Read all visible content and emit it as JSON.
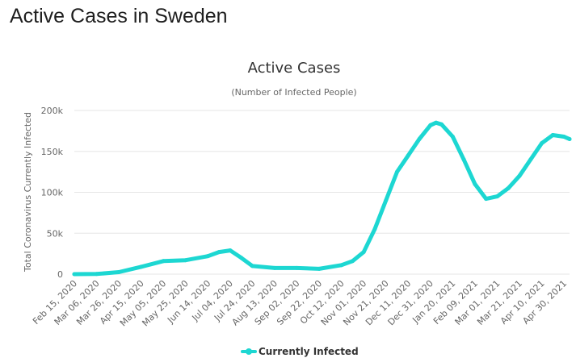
{
  "page": {
    "title": "Active Cases in Sweden"
  },
  "colors": {
    "series": "#1dd7d2",
    "grid": "#e6e6e6",
    "text": "#666666"
  },
  "chart_data": {
    "type": "line",
    "title": "Active Cases",
    "subtitle": "(Number of Infected People)",
    "ylabel": "Total Coronavirus Currently Infected",
    "xlabel": "",
    "grid": true,
    "legend_position": "bottom",
    "ylim": [
      0,
      200000
    ],
    "yticks": [
      {
        "value": 0,
        "label": "0"
      },
      {
        "value": 50000,
        "label": "50k"
      },
      {
        "value": 100000,
        "label": "100k"
      },
      {
        "value": 150000,
        "label": "150k"
      },
      {
        "value": 200000,
        "label": "200k"
      }
    ],
    "xticks": [
      "Feb 15, 2020",
      "Mar 06, 2020",
      "Mar 26, 2020",
      "Apr 15, 2020",
      "May 05, 2020",
      "May 25, 2020",
      "Jun 14, 2020",
      "Jul 04, 2020",
      "Jul 24, 2020",
      "Aug 13, 2020",
      "Sep 02, 2020",
      "Sep 22, 2020",
      "Oct 12, 2020",
      "Nov 01, 2020",
      "Nov 21, 2020",
      "Dec 11, 2020",
      "Dec 31, 2020",
      "Jan 20, 2021",
      "Feb 09, 2021",
      "Mar 01, 2021",
      "Mar 21, 2021",
      "Apr 10, 2021",
      "Apr 30, 2021"
    ],
    "series": [
      {
        "name": "Currently Infected",
        "color": "#1dd7d2",
        "points": [
          [
            "Feb 15, 2020",
            0
          ],
          [
            "Mar 06, 2020",
            200
          ],
          [
            "Mar 26, 2020",
            2500
          ],
          [
            "Apr 15, 2020",
            9000
          ],
          [
            "May 05, 2020",
            16000
          ],
          [
            "May 25, 2020",
            17000
          ],
          [
            "Jun 14, 2020",
            22000
          ],
          [
            "Jun 24, 2020",
            27000
          ],
          [
            "Jul 04, 2020",
            29000
          ],
          [
            "Jul 14, 2020",
            20000
          ],
          [
            "Jul 24, 2020",
            10000
          ],
          [
            "Aug 13, 2020",
            7500
          ],
          [
            "Sep 02, 2020",
            7500
          ],
          [
            "Sep 22, 2020",
            6500
          ],
          [
            "Oct 12, 2020",
            11000
          ],
          [
            "Oct 22, 2020",
            16000
          ],
          [
            "Nov 01, 2020",
            27000
          ],
          [
            "Nov 11, 2020",
            55000
          ],
          [
            "Nov 21, 2020",
            90000
          ],
          [
            "Dec 01, 2020",
            125000
          ],
          [
            "Dec 11, 2020",
            145000
          ],
          [
            "Dec 21, 2020",
            165000
          ],
          [
            "Dec 31, 2020",
            182000
          ],
          [
            "Jan 05, 2021",
            185000
          ],
          [
            "Jan 10, 2021",
            183000
          ],
          [
            "Jan 20, 2021",
            168000
          ],
          [
            "Jan 30, 2021",
            140000
          ],
          [
            "Feb 09, 2021",
            110000
          ],
          [
            "Feb 19, 2021",
            92000
          ],
          [
            "Mar 01, 2021",
            95000
          ],
          [
            "Mar 11, 2021",
            105000
          ],
          [
            "Mar 21, 2021",
            120000
          ],
          [
            "Mar 31, 2021",
            140000
          ],
          [
            "Apr 10, 2021",
            160000
          ],
          [
            "Apr 20, 2021",
            170000
          ],
          [
            "Apr 30, 2021",
            168000
          ],
          [
            "May 05, 2021",
            165000
          ]
        ]
      }
    ]
  }
}
